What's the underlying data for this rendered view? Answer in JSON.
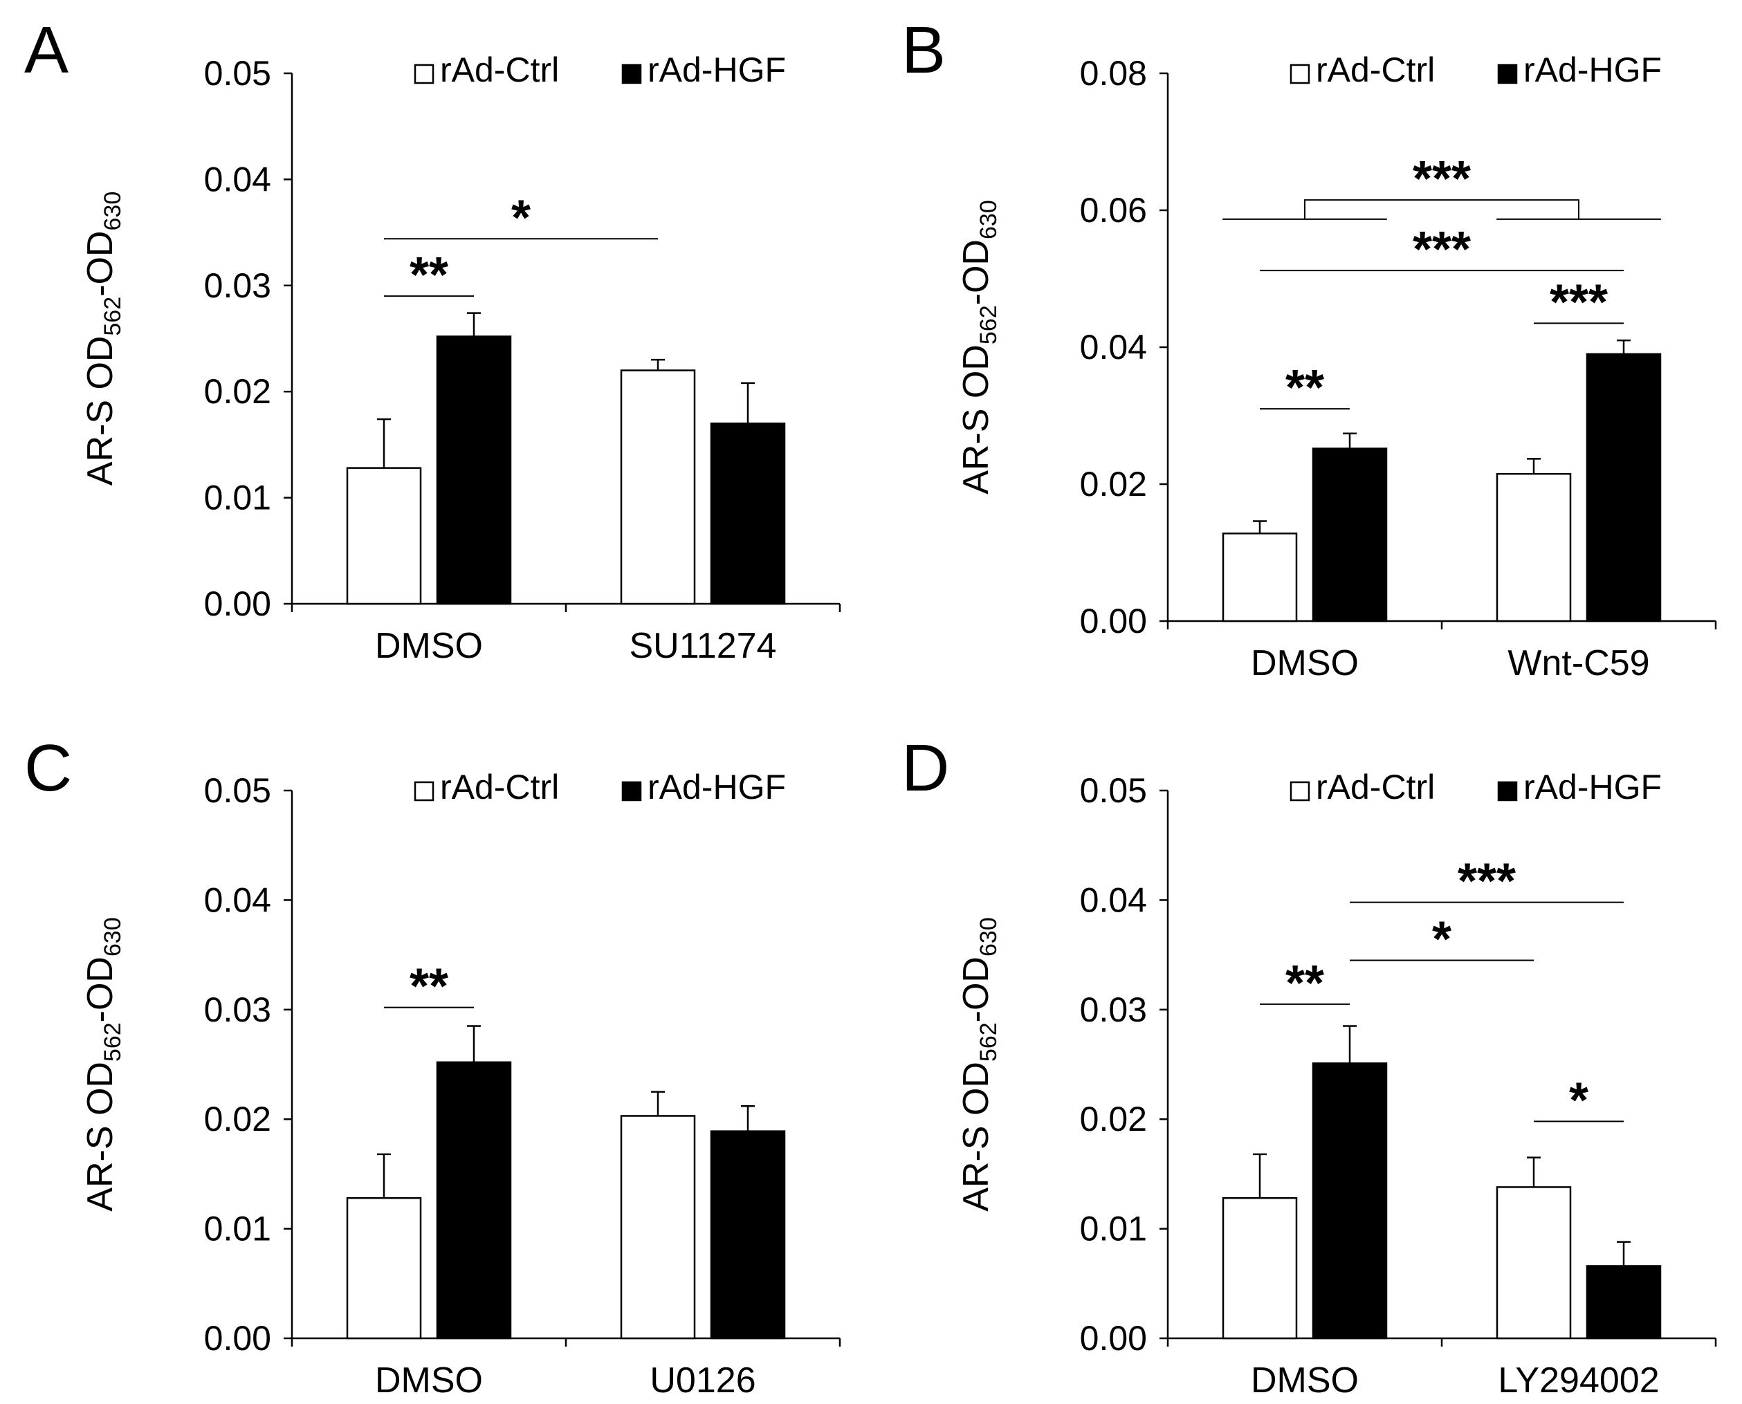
{
  "chart_data": [
    {
      "panel_label": "A",
      "type": "bar",
      "ylabel": {
        "main": "AR-S OD",
        "sub1": "562",
        "mid": "-OD",
        "sub2": "630"
      },
      "ylim": [
        0,
        0.05
      ],
      "yticks": [
        "0.00",
        "0.01",
        "0.02",
        "0.03",
        "0.04",
        "0.05"
      ],
      "categories": [
        "DMSO",
        "SU11274"
      ],
      "legend": [
        "rAd-Ctrl",
        "rAd-HGF"
      ],
      "legend_position": "top-right",
      "series": [
        {
          "name": "rAd-Ctrl",
          "color": "#ffffff",
          "values": [
            0.0128,
            0.022
          ],
          "errors": [
            0.0046,
            0.001
          ]
        },
        {
          "name": "rAd-HGF",
          "color": "#000000",
          "values": [
            0.0252,
            0.017
          ],
          "errors": [
            0.0022,
            0.0038
          ]
        }
      ],
      "significance": [
        {
          "label": "**",
          "from": [
            0,
            0
          ],
          "to": [
            0,
            1
          ],
          "y": 0.029
        },
        {
          "label": "*",
          "from": [
            0,
            0
          ],
          "to": [
            1,
            0
          ],
          "y": 0.0344
        }
      ]
    },
    {
      "panel_label": "B",
      "type": "bar",
      "ylabel": {
        "main": "AR-S OD",
        "sub1": "562",
        "mid": "-OD",
        "sub2": "630"
      },
      "ylim": [
        0,
        0.08
      ],
      "yticks": [
        "0.00",
        "0.02",
        "0.04",
        "0.06",
        "0.08"
      ],
      "categories": [
        "DMSO",
        "Wnt-C59"
      ],
      "legend": [
        "rAd-Ctrl",
        "rAd-HGF"
      ],
      "legend_position": "top-right",
      "series": [
        {
          "name": "rAd-Ctrl",
          "color": "#ffffff",
          "values": [
            0.0128,
            0.0215
          ],
          "errors": [
            0.0018,
            0.0022
          ]
        },
        {
          "name": "rAd-HGF",
          "color": "#000000",
          "values": [
            0.0252,
            0.039
          ],
          "errors": [
            0.0022,
            0.002
          ]
        }
      ],
      "significance": [
        {
          "label": "**",
          "from": [
            0,
            0
          ],
          "to": [
            0,
            1
          ],
          "y": 0.031
        },
        {
          "label": "***",
          "from": [
            1,
            0
          ],
          "to": [
            1,
            1
          ],
          "y": 0.0435
        },
        {
          "label": "***",
          "from": [
            0,
            0
          ],
          "to": [
            1,
            1
          ],
          "y": 0.0512
        },
        {
          "label": "***",
          "bracket": true,
          "left_span": [
            -0.3,
            0.3
          ],
          "right_span": [
            0.7,
            1.3
          ],
          "y_low": 0.0587,
          "y_high": 0.0615
        }
      ]
    },
    {
      "panel_label": "C",
      "type": "bar",
      "ylabel": {
        "main": "AR-S OD",
        "sub1": "562",
        "mid": "-OD",
        "sub2": "630"
      },
      "ylim": [
        0,
        0.05
      ],
      "yticks": [
        "0.00",
        "0.01",
        "0.02",
        "0.03",
        "0.04",
        "0.05"
      ],
      "categories": [
        "DMSO",
        "U0126"
      ],
      "legend": [
        "rAd-Ctrl",
        "rAd-HGF"
      ],
      "legend_position": "top-right",
      "series": [
        {
          "name": "rAd-Ctrl",
          "color": "#ffffff",
          "values": [
            0.0128,
            0.0203
          ],
          "errors": [
            0.004,
            0.0022
          ]
        },
        {
          "name": "rAd-HGF",
          "color": "#000000",
          "values": [
            0.0252,
            0.0189
          ],
          "errors": [
            0.0033,
            0.0023
          ]
        }
      ],
      "significance": [
        {
          "label": "**",
          "from": [
            0,
            0
          ],
          "to": [
            0,
            1
          ],
          "y": 0.0302
        }
      ]
    },
    {
      "panel_label": "D",
      "type": "bar",
      "ylabel": {
        "main": "AR-S OD",
        "sub1": "562",
        "mid": "-OD",
        "sub2": "630"
      },
      "ylim": [
        0,
        0.05
      ],
      "yticks": [
        "0.00",
        "0.01",
        "0.02",
        "0.03",
        "0.04",
        "0.05"
      ],
      "categories": [
        "DMSO",
        "LY294002"
      ],
      "legend": [
        "rAd-Ctrl",
        "rAd-HGF"
      ],
      "legend_position": "top-right",
      "series": [
        {
          "name": "rAd-Ctrl",
          "color": "#ffffff",
          "values": [
            0.0128,
            0.0138
          ],
          "errors": [
            0.004,
            0.0027
          ]
        },
        {
          "name": "rAd-HGF",
          "color": "#000000",
          "values": [
            0.0251,
            0.0066
          ],
          "errors": [
            0.0034,
            0.0022
          ]
        }
      ],
      "significance": [
        {
          "label": "*",
          "from": [
            1,
            0
          ],
          "to": [
            1,
            1
          ],
          "y": 0.0198
        },
        {
          "label": "**",
          "from": [
            0,
            0
          ],
          "to": [
            0,
            1
          ],
          "y": 0.0305
        },
        {
          "label": "*",
          "from": [
            0,
            1
          ],
          "to": [
            1,
            0
          ],
          "y": 0.0345
        },
        {
          "label": "***",
          "from": [
            0,
            1
          ],
          "to": [
            1,
            1
          ],
          "y": 0.0398
        }
      ]
    }
  ]
}
